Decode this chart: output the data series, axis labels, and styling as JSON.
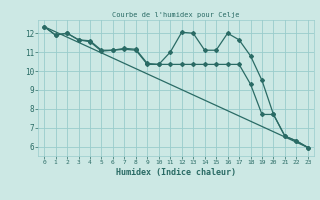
{
  "title": "Courbe de l'humidex pour Celje",
  "xlabel": "Humidex (Indice chaleur)",
  "bg_color": "#cce8e4",
  "grid_color": "#99cccc",
  "line_color": "#2a6b65",
  "xlim": [
    -0.5,
    23.5
  ],
  "ylim": [
    5.5,
    12.7
  ],
  "xticks": [
    0,
    1,
    2,
    3,
    4,
    5,
    6,
    7,
    8,
    9,
    10,
    11,
    12,
    13,
    14,
    15,
    16,
    17,
    18,
    19,
    20,
    21,
    22,
    23
  ],
  "yticks": [
    6,
    7,
    8,
    9,
    10,
    11,
    12
  ],
  "series1_x": [
    0,
    1,
    2,
    3,
    4,
    5,
    6,
    7,
    8,
    9,
    10,
    11,
    12,
    13,
    14,
    15,
    16,
    17,
    18,
    19,
    20,
    21,
    22,
    23
  ],
  "series1_y": [
    12.35,
    11.9,
    12.0,
    11.65,
    11.6,
    11.1,
    11.1,
    11.2,
    11.15,
    10.4,
    10.35,
    11.0,
    12.05,
    12.0,
    11.1,
    11.1,
    12.0,
    11.65,
    10.8,
    9.5,
    7.7,
    6.55,
    6.3,
    5.95
  ],
  "series2_x": [
    0,
    1,
    2,
    3,
    4,
    5,
    6,
    7,
    8,
    9,
    10,
    11,
    12,
    13,
    14,
    15,
    16,
    17,
    18,
    19,
    20,
    21,
    22,
    23
  ],
  "series2_y": [
    12.35,
    11.9,
    12.0,
    11.65,
    11.55,
    11.05,
    11.1,
    11.15,
    11.1,
    10.35,
    10.35,
    10.35,
    10.35,
    10.35,
    10.35,
    10.35,
    10.35,
    10.35,
    9.3,
    7.7,
    7.7,
    6.55,
    6.3,
    5.95
  ],
  "series3_x": [
    0,
    23
  ],
  "series3_y": [
    12.35,
    5.95
  ]
}
